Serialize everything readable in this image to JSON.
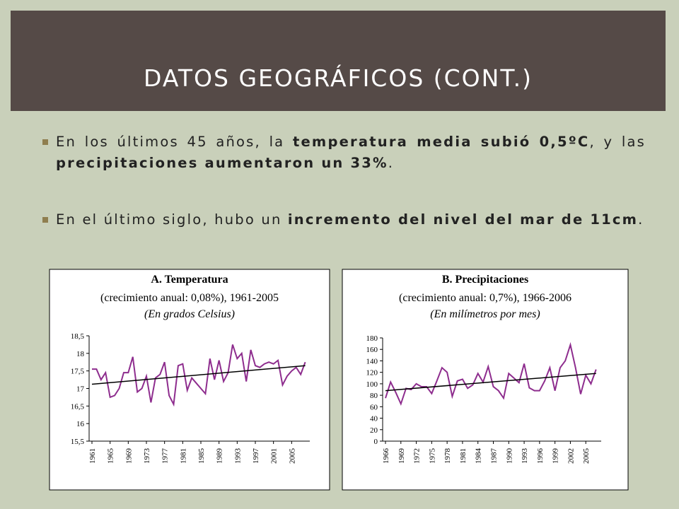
{
  "header": {
    "title": "DATOS GEOGRÁFICOS (CONT.)"
  },
  "bullets": [
    [
      {
        "text": "En los últimos 45 años, la ",
        "bold": false
      },
      {
        "text": "temperatura media subió 0,5ºC",
        "bold": true
      },
      {
        "text": ", y las ",
        "bold": false
      },
      {
        "text": "precipitaciones aumentaron un 33%",
        "bold": true
      },
      {
        "text": ".",
        "bold": false
      }
    ],
    [
      {
        "text": "En el último siglo, hubo un ",
        "bold": false
      },
      {
        "text": "incremento del nivel del mar de 11cm",
        "bold": true
      },
      {
        "text": ".",
        "bold": false
      }
    ]
  ],
  "chart_data": [
    {
      "type": "line",
      "title": "A. Temperatura",
      "subtitle": "(crecimiento anual: 0,08%), 1961-2005",
      "unit_note": "(En grados Celsius)",
      "x": [
        1961,
        1962,
        1963,
        1964,
        1965,
        1966,
        1967,
        1968,
        1969,
        1970,
        1971,
        1972,
        1973,
        1974,
        1975,
        1976,
        1977,
        1978,
        1979,
        1980,
        1981,
        1982,
        1983,
        1984,
        1985,
        1986,
        1987,
        1988,
        1989,
        1990,
        1991,
        1992,
        1993,
        1994,
        1995,
        1996,
        1997,
        1998,
        1999,
        2000,
        2001,
        2002,
        2003,
        2004,
        2005,
        2006,
        2007,
        2008
      ],
      "series": [
        {
          "color": "#8e2d8e",
          "values": [
            17.55,
            17.55,
            17.25,
            17.45,
            16.75,
            16.8,
            17.0,
            17.45,
            17.45,
            17.9,
            16.9,
            17.0,
            17.35,
            16.6,
            17.3,
            17.4,
            17.75,
            16.8,
            16.55,
            17.65,
            17.7,
            16.95,
            17.3,
            17.15,
            17.0,
            16.85,
            17.85,
            17.25,
            17.8,
            17.2,
            17.45,
            18.25,
            17.85,
            18.0,
            17.2,
            18.1,
            17.65,
            17.6,
            17.7,
            17.75,
            17.7,
            17.8,
            17.1,
            17.35,
            17.5,
            17.6,
            17.4,
            17.75
          ]
        }
      ],
      "trend": {
        "x": [
          1961,
          2008
        ],
        "values": [
          17.12,
          17.65
        ]
      },
      "xlim": [
        1961,
        2009
      ],
      "xticks": [
        1961,
        1965,
        1969,
        1973,
        1977,
        1981,
        1985,
        1989,
        1993,
        1997,
        2001,
        2005
      ],
      "ylim": [
        15.5,
        18.5
      ],
      "yticks": [
        {
          "value": 18.5,
          "label": "18,5"
        },
        18,
        {
          "value": 17.5,
          "label": "17,5"
        },
        17,
        {
          "value": 16.5,
          "label": "16,5"
        },
        16,
        {
          "value": 15.5,
          "label": "15,5"
        }
      ]
    },
    {
      "type": "line",
      "title": "B. Precipitaciones",
      "subtitle": "(crecimiento anual: 0,7%), 1966-2006",
      "unit_note": "(En milímetros por mes)",
      "x": [
        1966,
        1967,
        1968,
        1969,
        1970,
        1971,
        1972,
        1973,
        1974,
        1975,
        1976,
        1977,
        1978,
        1979,
        1980,
        1981,
        1982,
        1983,
        1984,
        1985,
        1986,
        1987,
        1988,
        1989,
        1990,
        1991,
        1992,
        1993,
        1994,
        1995,
        1996,
        1997,
        1998,
        1999,
        2000,
        2001,
        2002,
        2003,
        2004,
        2005,
        2006,
        2007
      ],
      "series": [
        {
          "color": "#8e2d8e",
          "values": [
            75,
            103,
            85,
            65,
            92,
            90,
            100,
            95,
            95,
            83,
            105,
            128,
            120,
            78,
            105,
            108,
            92,
            98,
            118,
            103,
            130,
            95,
            88,
            75,
            118,
            110,
            102,
            135,
            93,
            88,
            88,
            105,
            128,
            88,
            128,
            140,
            168,
            128,
            82,
            115,
            100,
            125
          ]
        }
      ],
      "trend": {
        "x": [
          1966,
          2007
        ],
        "values": [
          88,
          118
        ]
      },
      "xlim": [
        1966,
        2008
      ],
      "xticks": [
        1966,
        1969,
        1972,
        1975,
        1978,
        1981,
        1984,
        1987,
        1990,
        1993,
        1996,
        1999,
        2002,
        2005
      ],
      "ylim": [
        0,
        180
      ],
      "yticks": [
        180,
        160,
        140,
        120,
        100,
        80,
        60,
        40,
        20,
        0
      ]
    }
  ]
}
